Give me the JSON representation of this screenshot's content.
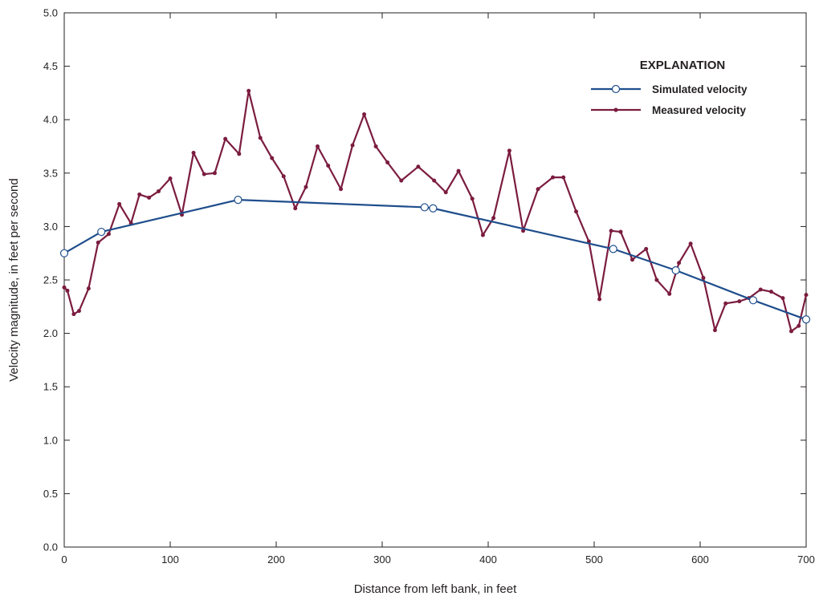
{
  "chart_data": {
    "type": "line",
    "xlabel": "Distance from left bank, in feet",
    "ylabel": "Velocity magnitude, in feet per second",
    "xlim": [
      0,
      700
    ],
    "ylim": [
      0,
      5
    ],
    "x_ticks": [
      "0",
      "100",
      "200",
      "300",
      "400",
      "500",
      "600",
      "700"
    ],
    "y_ticks": [
      "0.0",
      "0.5",
      "1.0",
      "1.5",
      "2.0",
      "2.5",
      "3.0",
      "3.5",
      "4.0",
      "4.5",
      "5.0"
    ],
    "grid": false,
    "legend": {
      "title": "EXPLANATION",
      "placement": "top-right"
    },
    "series": [
      {
        "name": "Simulated velocity",
        "color": "#1f4e8c",
        "marker": "open-circle",
        "x": [
          0,
          35,
          164,
          340,
          348,
          518,
          577,
          650,
          700
        ],
        "y": [
          2.75,
          2.95,
          3.25,
          3.18,
          3.17,
          2.79,
          2.59,
          2.31,
          2.13
        ]
      },
      {
        "name": "Measured velocity",
        "color": "#7b1c3f",
        "marker": "filled-dot",
        "x": [
          0,
          3,
          9,
          14,
          23,
          32,
          42,
          52,
          63,
          71,
          80,
          89,
          100,
          111,
          122,
          132,
          142,
          152,
          165,
          174,
          185,
          196,
          207,
          218,
          228,
          239,
          249,
          261,
          272,
          283,
          294,
          305,
          318,
          334,
          349,
          360,
          372,
          385,
          395,
          405,
          420,
          433,
          447,
          461,
          471,
          483,
          495,
          505,
          516,
          525,
          536,
          549,
          559,
          571,
          580,
          591,
          603,
          614,
          624,
          637,
          646,
          657,
          667,
          678,
          686,
          693,
          700
        ],
        "y": [
          2.43,
          2.4,
          2.18,
          2.21,
          2.42,
          2.85,
          2.93,
          3.21,
          3.03,
          3.3,
          3.27,
          3.33,
          3.45,
          3.11,
          3.69,
          3.49,
          3.5,
          3.82,
          3.68,
          4.27,
          3.83,
          3.64,
          3.47,
          3.17,
          3.37,
          3.75,
          3.57,
          3.35,
          3.76,
          4.05,
          3.75,
          3.6,
          3.43,
          3.56,
          3.43,
          3.32,
          3.52,
          3.26,
          2.92,
          3.08,
          3.71,
          2.96,
          3.35,
          3.46,
          3.46,
          3.14,
          2.86,
          2.32,
          2.96,
          2.95,
          2.69,
          2.79,
          2.5,
          2.37,
          2.66,
          2.84,
          2.52,
          2.03,
          2.28,
          2.3,
          2.33,
          2.41,
          2.39,
          2.33,
          2.02,
          2.07,
          2.36
        ]
      }
    ]
  }
}
